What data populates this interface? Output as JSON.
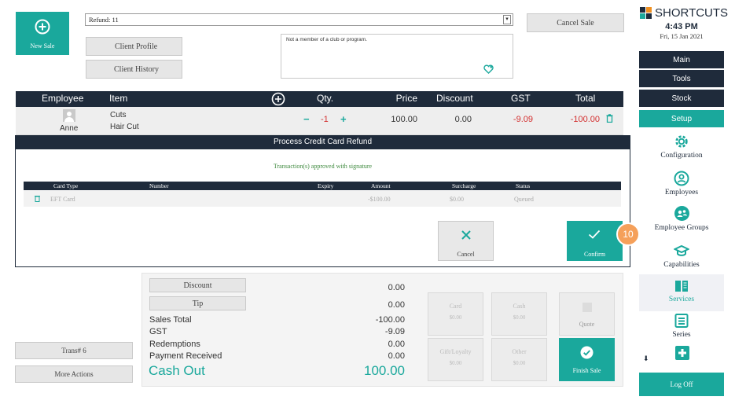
{
  "top": {
    "new_sale_label": "New Sale",
    "refund_field_value": "Refund: 11",
    "cancel_sale_label": "Cancel Sale",
    "client_profile_label": "Client Profile",
    "client_history_label": "Client History",
    "note_text": "Not a member of a club or program."
  },
  "sidebar": {
    "brand": "SHORTCUTS",
    "time": "4:43 PM",
    "date": "Fri, 15 Jan 2021",
    "nav": [
      "Main",
      "Tools",
      "Stock",
      "Setup"
    ],
    "items": [
      "Configuration",
      "Employees",
      "Employee Groups",
      "Capabilities",
      "Services",
      "Series"
    ],
    "log_off": "Log Off"
  },
  "table": {
    "headers": {
      "employee": "Employee",
      "item": "Item",
      "qty": "Qty.",
      "price": "Price",
      "discount": "Discount",
      "gst": "GST",
      "total": "Total"
    },
    "row": {
      "employee": "Anne",
      "category": "Cuts",
      "item": "Hair Cut",
      "qty_minus": "−",
      "qty": "-1",
      "qty_plus": "+",
      "price": "100.00",
      "discount": "0.00",
      "gst": "-9.09",
      "total": "-100.00"
    }
  },
  "dialog": {
    "title": "Process Credit Card Refund",
    "status_message": "Transaction(s) approved with signature",
    "columns": {
      "card_type": "Card Type",
      "number": "Number",
      "expiry": "Expiry",
      "amount": "Amount",
      "surcharge": "Surcharge",
      "status": "Status"
    },
    "row": {
      "card_type": "EFT Card",
      "number": "",
      "expiry": "",
      "amount": "-$100.00",
      "surcharge": "$0.00",
      "status": "Queued"
    },
    "cancel_label": "Cancel",
    "confirm_label": "Confirm",
    "step_badge": "10"
  },
  "totals": {
    "discount_label": "Discount",
    "tip_label": "Tip",
    "discount_value": "0.00",
    "tip_value": "0.00",
    "sales_total_label": "Sales Total",
    "sales_total_value": "-100.00",
    "gst_label": "GST",
    "gst_value": "-9.09",
    "redemptions_label": "Redemptions",
    "redemptions_value": "0.00",
    "payment_received_label": "Payment Received",
    "payment_received_value": "0.00",
    "cash_out_label": "Cash Out",
    "cash_out_value": "100.00"
  },
  "payments": {
    "card": {
      "label": "Card",
      "amount": "$0.00"
    },
    "cash": {
      "label": "Cash",
      "amount": "$0.00"
    },
    "gift": {
      "label": "Gift/Loyalty",
      "amount": "$0.00"
    },
    "other": {
      "label": "Other",
      "amount": "$0.00"
    },
    "quote_label": "Quote",
    "finish_sale_label": "Finish Sale"
  },
  "bottom": {
    "trans_label": "Trans# 6",
    "more_actions_label": "More Actions"
  },
  "colors": {
    "teal": "#1aa89c",
    "navy": "#1f2b3b",
    "red": "#d32f2f",
    "orange_badge": "#f5a05a"
  }
}
